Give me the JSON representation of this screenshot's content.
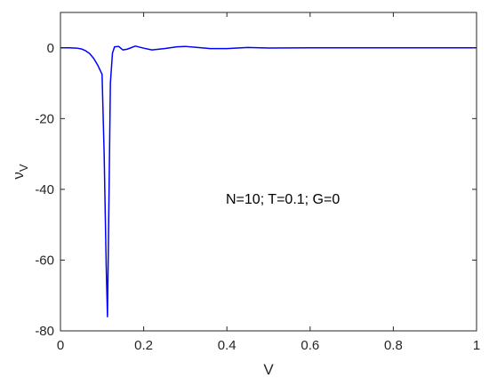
{
  "chart_data": {
    "type": "line",
    "title": "",
    "xlabel": "V",
    "ylabel": "ν",
    "ylabel_sub": "V",
    "xlim": [
      0,
      1
    ],
    "ylim": [
      -80,
      10
    ],
    "xticks": [
      0,
      0.2,
      0.4,
      0.6,
      0.8,
      1
    ],
    "xtick_labels": [
      "0",
      "0.2",
      "0.4",
      "0.6",
      "0.8",
      "1"
    ],
    "yticks": [
      -80,
      -60,
      -40,
      -20,
      0
    ],
    "ytick_labels": [
      "-80",
      "-60",
      "-40",
      "-20",
      "0"
    ],
    "grid": false,
    "annotation": "N=10; T=0.1; G=0",
    "line_color": "#0000ff",
    "series": [
      {
        "x": [
          0,
          0.02,
          0.04,
          0.05,
          0.06,
          0.07,
          0.08,
          0.09,
          0.1,
          0.105,
          0.11,
          0.113,
          0.116,
          0.12,
          0.125,
          0.13,
          0.14,
          0.15,
          0.16,
          0.18,
          0.2,
          0.22,
          0.25,
          0.28,
          0.3,
          0.33,
          0.36,
          0.4,
          0.45,
          0.5,
          0.6,
          0.7,
          0.8,
          0.9,
          1.0
        ],
        "y": [
          0,
          0,
          -0.1,
          -0.3,
          -0.8,
          -1.6,
          -3.0,
          -5.0,
          -7.5,
          -30,
          -62,
          -76,
          -48,
          -10,
          -1.5,
          0.3,
          0.4,
          -0.6,
          -0.4,
          0.5,
          -0.1,
          -0.6,
          -0.2,
          0.3,
          0.4,
          0.1,
          -0.2,
          -0.2,
          0.1,
          -0.05,
          0,
          0,
          0,
          0,
          0
        ]
      }
    ]
  }
}
